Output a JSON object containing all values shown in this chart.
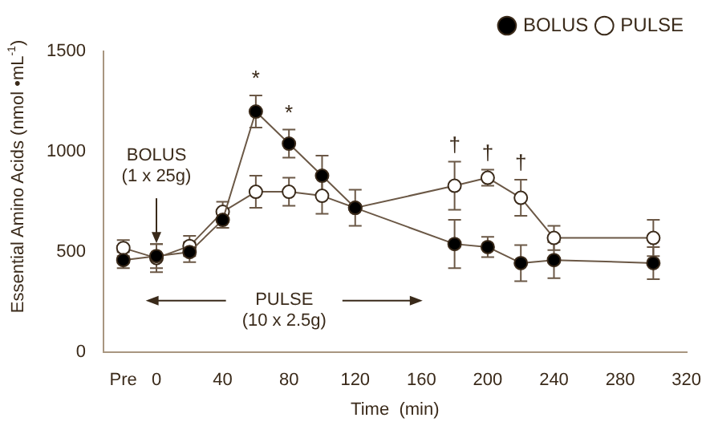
{
  "chart_data": {
    "type": "line",
    "xlabel": "Time  (min)",
    "ylabel": "Essential Amino Acids (nmol •mL$^{-1}$)",
    "x": [
      -20,
      0,
      20,
      40,
      60,
      80,
      100,
      120,
      180,
      200,
      220,
      240,
      300
    ],
    "series": [
      {
        "name": "BOLUS",
        "color": "#000000",
        "marker": "circle",
        "values": [
          460,
          480,
          500,
          660,
          1200,
          1040,
          880,
          720,
          540,
          525,
          445,
          460,
          445
        ],
        "errors": [
          40,
          60,
          50,
          40,
          80,
          70,
          100,
          90,
          120,
          50,
          90,
          90,
          80
        ]
      },
      {
        "name": "PULSE",
        "color": "#ffffff",
        "marker": "circle",
        "values": [
          520,
          470,
          530,
          700,
          800,
          800,
          780,
          720,
          830,
          870,
          770,
          570,
          570
        ],
        "errors": [
          40,
          70,
          50,
          50,
          80,
          70,
          90,
          null,
          120,
          40,
          90,
          60,
          90
        ]
      }
    ],
    "xlim": [
      -32,
      320
    ],
    "xticks": [
      {
        "value": -20,
        "label": "Pre"
      },
      0,
      40,
      80,
      120,
      160,
      200,
      240,
      280,
      320
    ],
    "ylim": [
      0,
      1500
    ],
    "yticks": [
      0,
      500,
      1000,
      1500
    ],
    "grid": false,
    "legend": "top right",
    "annotations": [
      {
        "text": "BOLUS\n(1 x 25g)",
        "x": 0,
        "y": 560
      },
      "PULSE\n(10 x 2.5g)",
      {
        "text": "*",
        "x": 60,
        "y": 1200
      },
      {
        "text": "*",
        "x": 80,
        "y": 1040
      },
      {
        "text": "†",
        "x": 180,
        "y": 830
      },
      {
        "text": "†",
        "x": 200,
        "y": 870
      },
      {
        "text": "†",
        "x": 220,
        "y": 770
      }
    ]
  }
}
